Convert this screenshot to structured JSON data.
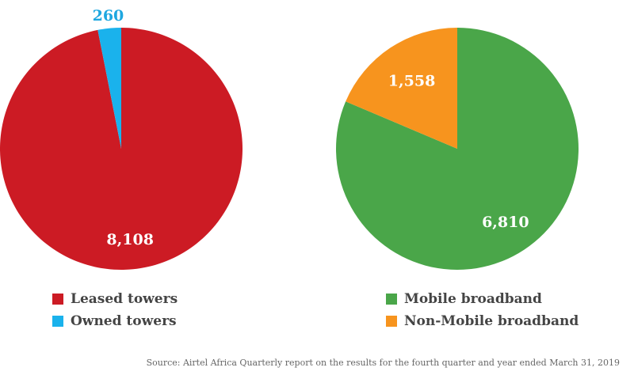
{
  "chart_data": [
    {
      "type": "pie",
      "slices": [
        {
          "label": "Leased towers",
          "value": 8108,
          "value_label": "8,108",
          "color": "#cc1b24"
        },
        {
          "label": "Owned towers",
          "value": 260,
          "value_label": "260",
          "color": "#1ab2ec"
        }
      ]
    },
    {
      "type": "pie",
      "slices": [
        {
          "label": "Mobile broadband",
          "value": 6810,
          "value_label": "6,810",
          "color": "#4aa649"
        },
        {
          "label": "Non-Mobile broadband",
          "value": 1558,
          "value_label": "1,558",
          "color": "#f7941e"
        }
      ]
    }
  ],
  "source": "Source: Airtel Africa Quarterly report on the results for the fourth quarter and year ended March 31, 2019"
}
